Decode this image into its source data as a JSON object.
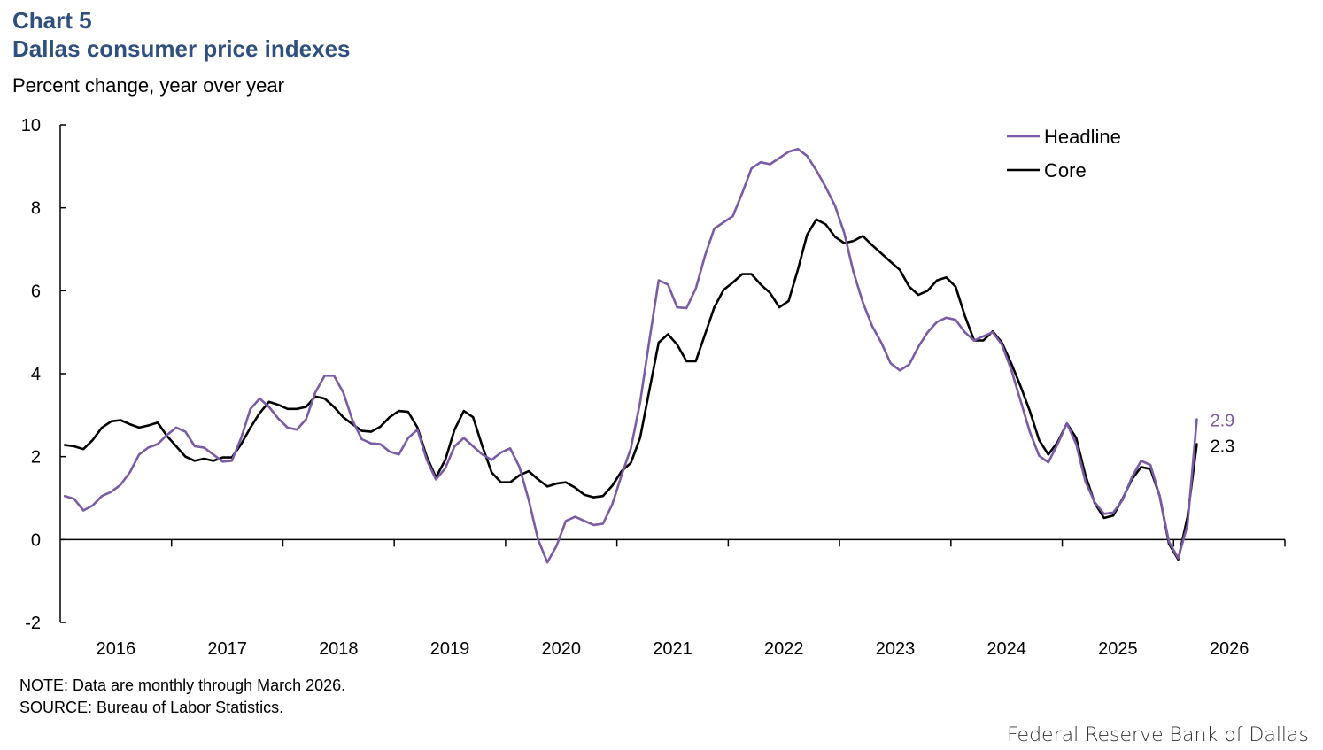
{
  "header": {
    "chart_number": "Chart 5",
    "title": "Dallas consumer price indexes",
    "subtitle": "Percent change, year over year"
  },
  "footer": {
    "note": "NOTE: Data are monthly through March 2026.",
    "source": "SOURCE: Bureau of Labor Statistics.",
    "credit": "Federal Reserve Bank of Dallas"
  },
  "chart_data": {
    "type": "line",
    "title": "Dallas consumer price indexes",
    "ylabel": "Percent change, year over year",
    "ylim": [
      -2,
      10
    ],
    "yticks": [
      -2,
      0,
      2,
      4,
      6,
      8,
      10
    ],
    "xlim": [
      2015.5,
      2026.5
    ],
    "xtick_labels": [
      "2016",
      "2017",
      "2018",
      "2019",
      "2020",
      "2021",
      "2022",
      "2023",
      "2024",
      "2025",
      "2026"
    ],
    "x_start": "July 2015",
    "x_frequency": "monthly",
    "legend_position": "top-right",
    "grid": false,
    "series": [
      {
        "name": "Headline",
        "color": "#7b5aa6",
        "end_label": "2.9",
        "values": [
          1.05,
          0.98,
          0.7,
          0.82,
          1.05,
          1.15,
          1.32,
          1.62,
          2.05,
          2.22,
          2.3,
          2.52,
          2.7,
          2.6,
          2.25,
          2.22,
          2.05,
          1.88,
          1.9,
          2.45,
          3.15,
          3.4,
          3.2,
          2.92,
          2.7,
          2.65,
          2.9,
          3.55,
          3.95,
          3.95,
          3.55,
          2.88,
          2.42,
          2.32,
          2.3,
          2.12,
          2.05,
          2.45,
          2.65,
          1.92,
          1.45,
          1.72,
          2.25,
          2.45,
          2.25,
          2.05,
          1.92,
          2.1,
          2.2,
          1.75,
          0.95,
          0.0,
          -0.55,
          -0.15,
          0.45,
          0.55,
          0.45,
          0.35,
          0.38,
          0.85,
          1.55,
          2.2,
          3.3,
          4.8,
          6.25,
          6.15,
          5.6,
          5.58,
          6.05,
          6.85,
          7.5,
          7.65,
          7.8,
          8.35,
          8.95,
          9.1,
          9.05,
          9.2,
          9.35,
          9.42,
          9.25,
          8.9,
          8.5,
          8.05,
          7.4,
          6.45,
          5.72,
          5.15,
          4.75,
          4.25,
          4.08,
          4.22,
          4.65,
          5.0,
          5.25,
          5.35,
          5.3,
          5.0,
          4.8,
          4.9,
          5.0,
          4.7,
          4.1,
          3.35,
          2.6,
          2.02,
          1.86,
          2.3,
          2.8,
          2.3,
          1.4,
          0.9,
          0.62,
          0.65,
          0.95,
          1.5,
          1.9,
          1.8,
          1.05,
          -0.05,
          -0.45,
          0.35,
          2.9
        ]
      },
      {
        "name": "Core",
        "color": "#000000",
        "end_label": "2.3",
        "values": [
          2.28,
          2.25,
          2.18,
          2.4,
          2.7,
          2.85,
          2.88,
          2.78,
          2.7,
          2.75,
          2.82,
          2.5,
          2.25,
          2.0,
          1.9,
          1.95,
          1.9,
          1.98,
          1.98,
          2.3,
          2.7,
          3.05,
          3.32,
          3.25,
          3.15,
          3.15,
          3.2,
          3.45,
          3.4,
          3.2,
          2.95,
          2.78,
          2.62,
          2.6,
          2.72,
          2.95,
          3.1,
          3.08,
          2.7,
          2.0,
          1.5,
          1.92,
          2.65,
          3.1,
          2.95,
          2.25,
          1.62,
          1.38,
          1.38,
          1.55,
          1.65,
          1.45,
          1.28,
          1.35,
          1.38,
          1.25,
          1.08,
          1.02,
          1.05,
          1.3,
          1.65,
          1.85,
          2.45,
          3.6,
          4.75,
          4.95,
          4.7,
          4.3,
          4.3,
          4.95,
          5.6,
          6.02,
          6.2,
          6.4,
          6.4,
          6.15,
          5.95,
          5.6,
          5.75,
          6.5,
          7.35,
          7.72,
          7.6,
          7.3,
          7.15,
          7.2,
          7.32,
          7.1,
          6.9,
          6.7,
          6.5,
          6.1,
          5.9,
          6.0,
          6.25,
          6.32,
          6.1,
          5.4,
          4.8,
          4.8,
          5.02,
          4.75,
          4.25,
          3.7,
          3.1,
          2.4,
          2.05,
          2.35,
          2.8,
          2.45,
          1.55,
          0.88,
          0.52,
          0.58,
          0.98,
          1.45,
          1.75,
          1.7,
          1.05,
          -0.1,
          -0.48,
          0.55,
          2.3
        ]
      }
    ]
  }
}
